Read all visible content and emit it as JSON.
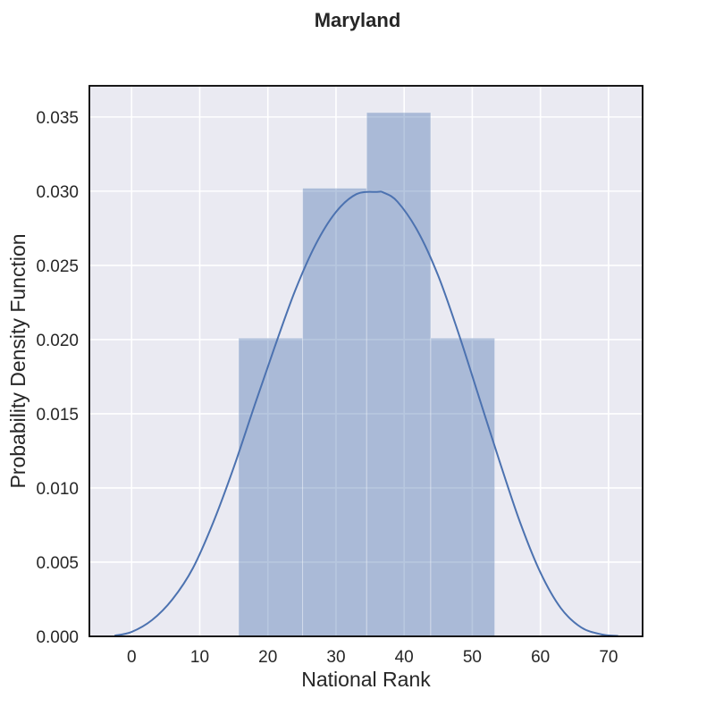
{
  "chart_data": {
    "type": "histogram",
    "title": "Maryland",
    "xlabel": "National Rank",
    "ylabel": "Probability Density Function",
    "xlim": [
      -6.2,
      75.0
    ],
    "ylim": [
      0,
      0.0371
    ],
    "xticks": [
      0,
      10,
      20,
      30,
      40,
      50,
      60,
      70
    ],
    "yticks": [
      0.0,
      0.005,
      0.01,
      0.015,
      0.02,
      0.025,
      0.03,
      0.035
    ],
    "ytick_labels": [
      "0.000",
      "0.005",
      "0.010",
      "0.015",
      "0.020",
      "0.025",
      "0.030",
      "0.035"
    ],
    "grid": true,
    "bins": [
      {
        "x0": 15.7,
        "x1": 25.1,
        "density": 0.0201
      },
      {
        "x0": 25.1,
        "x1": 34.5,
        "density": 0.0302
      },
      {
        "x0": 34.5,
        "x1": 43.9,
        "density": 0.0353
      },
      {
        "x0": 43.9,
        "x1": 53.3,
        "density": 0.0201
      }
    ],
    "kde_curve": {
      "x": [
        -2.5,
        0,
        3,
        6,
        9,
        12,
        15,
        18,
        21,
        24,
        27,
        30,
        33,
        36,
        37,
        39,
        42,
        45,
        48,
        51,
        54,
        57,
        60,
        63,
        66,
        69,
        71.4
      ],
      "y": [
        5e-05,
        0.0003,
        0.0011,
        0.0025,
        0.0046,
        0.0077,
        0.0114,
        0.0155,
        0.0195,
        0.0233,
        0.0264,
        0.0286,
        0.0298,
        0.02995,
        0.0299,
        0.0293,
        0.0273,
        0.0243,
        0.0204,
        0.0161,
        0.0118,
        0.0077,
        0.0043,
        0.0019,
        0.0006,
        0.00013,
        3e-05
      ]
    },
    "colors": {
      "background": "#eaeaf2",
      "grid": "#ffffff",
      "bar_fill": "#4c72b0",
      "bar_opacity": 0.4,
      "line": "#4c72b0",
      "frame": "#000000"
    }
  }
}
